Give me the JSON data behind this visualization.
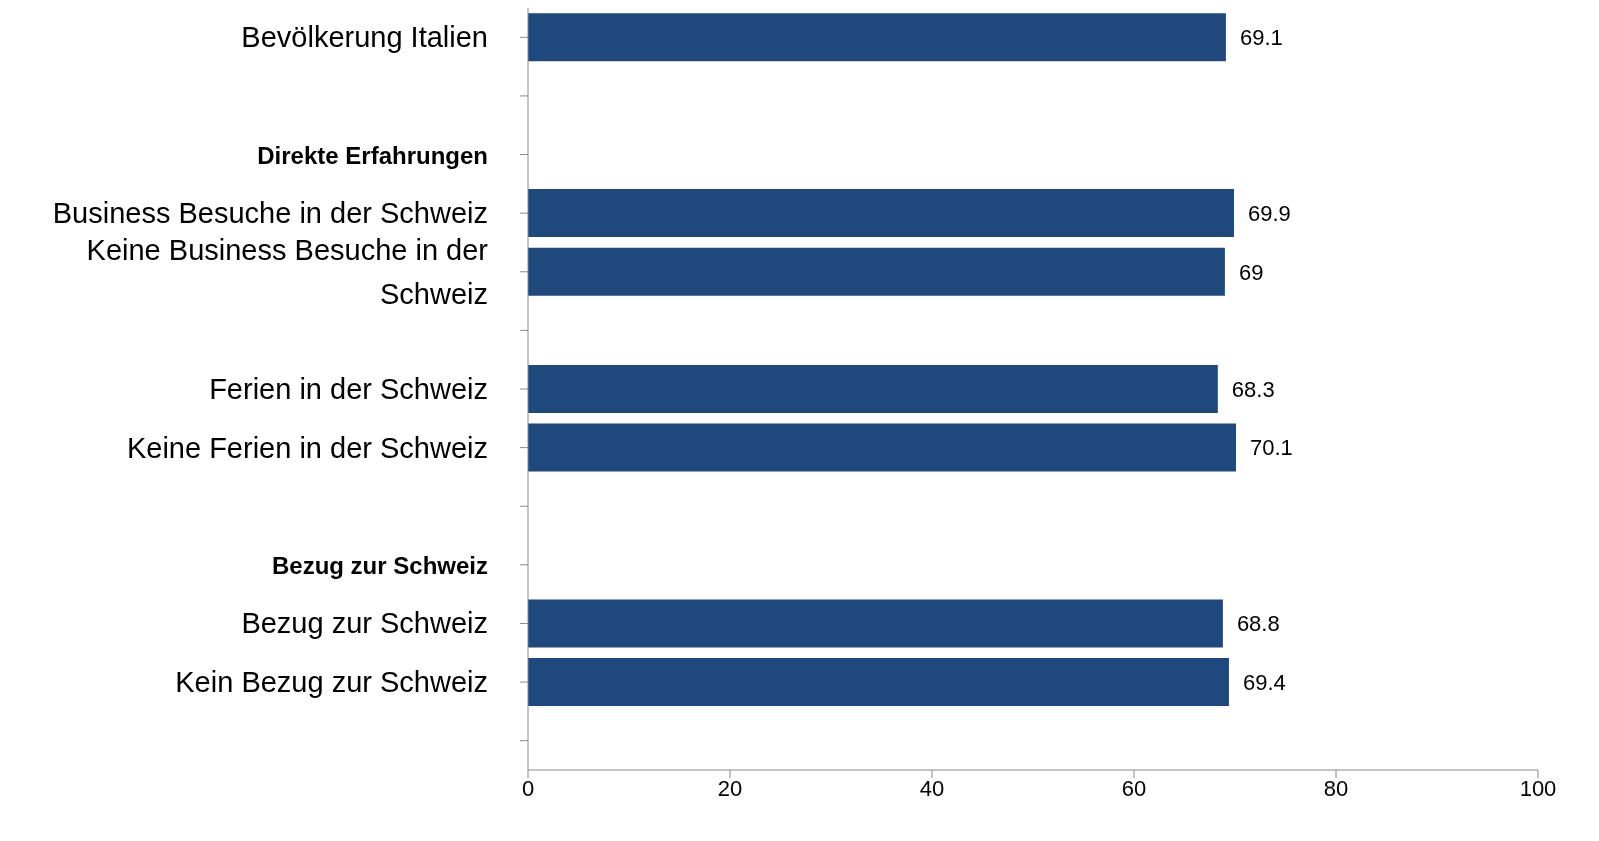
{
  "chart_data": {
    "type": "bar",
    "orientation": "horizontal",
    "categories": [
      "Bevölkerung Italien",
      null,
      "Direkte Erfahrungen",
      "Business Besuche in der Schweiz",
      "Keine Business Besuche in der Schweiz",
      null,
      "Ferien in der Schweiz",
      "Keine Ferien in der Schweiz",
      null,
      "Bezug zur Schweiz",
      "Bezug zur Schweiz",
      "Kein Bezug zur Schweiz",
      null
    ],
    "values": [
      69.1,
      null,
      null,
      69.9,
      69,
      null,
      68.3,
      70.1,
      null,
      null,
      68.8,
      69.4,
      null
    ],
    "color": "#1f497d",
    "xlim": [
      0,
      100
    ],
    "xticks": [
      0,
      20,
      40,
      60,
      80,
      100
    ],
    "grid": false,
    "data_labels": true
  }
}
